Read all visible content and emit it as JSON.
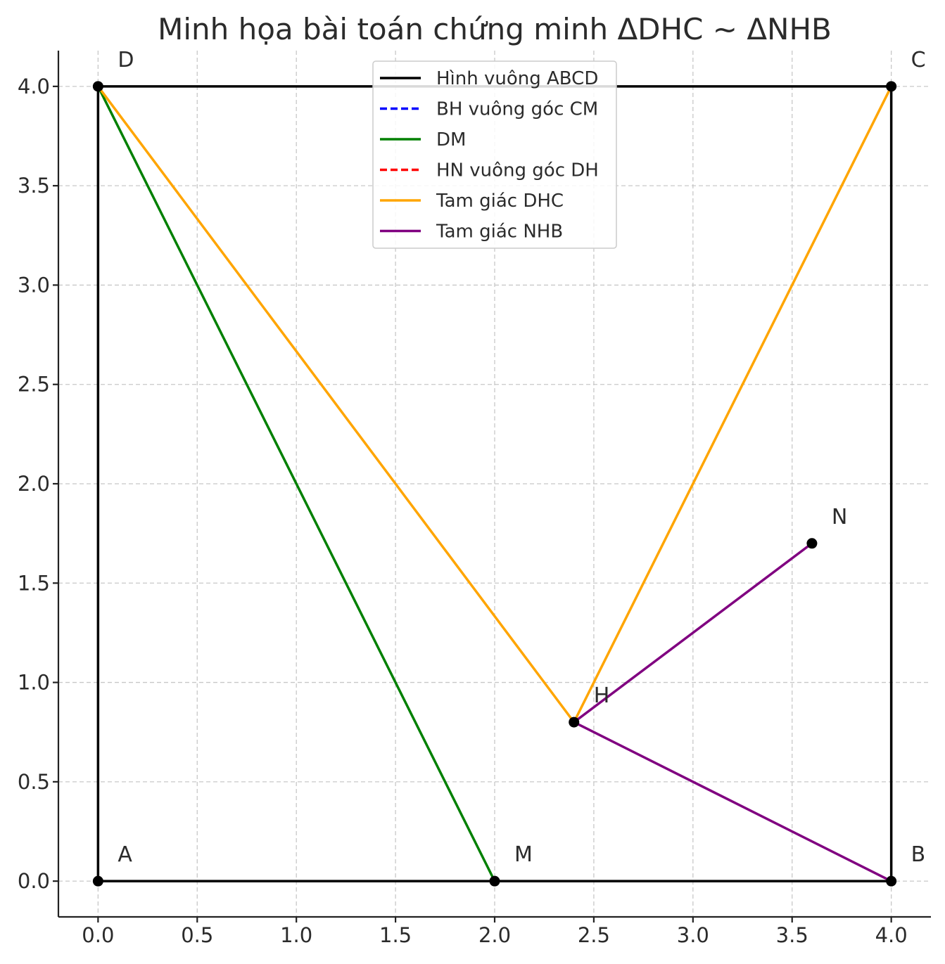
{
  "chart_data": {
    "type": "line",
    "title": "Minh họa bài toán chứng minh ΔDHC ~ ΔNHB",
    "xlabel": "",
    "ylabel": "",
    "xlim": [
      -0.2,
      4.2
    ],
    "ylim": [
      -0.18,
      4.18
    ],
    "grid": true,
    "legend_position": "top-center",
    "x_ticks": [
      "0.0",
      "0.5",
      "1.0",
      "1.5",
      "2.0",
      "2.5",
      "3.0",
      "3.5",
      "4.0"
    ],
    "y_ticks": [
      "0.0",
      "0.5",
      "1.0",
      "1.5",
      "2.0",
      "2.5",
      "3.0",
      "3.5",
      "4.0"
    ],
    "series": [
      {
        "name": "Hình vuông ABCD",
        "color": "#000000",
        "dash": "solid",
        "points": [
          [
            0,
            0
          ],
          [
            4,
            0
          ],
          [
            4,
            4
          ],
          [
            0,
            4
          ],
          [
            0,
            0
          ]
        ]
      },
      {
        "name": "BH vuông góc CM",
        "color": "#0000ff",
        "dash": "dashed",
        "points": []
      },
      {
        "name": "DM",
        "color": "#008000",
        "dash": "solid",
        "points": [
          [
            0,
            4
          ],
          [
            2,
            0
          ]
        ]
      },
      {
        "name": "HN vuông góc DH",
        "color": "#ff0000",
        "dash": "dashed",
        "points": []
      },
      {
        "name": "Tam giác DHC",
        "color": "#ffa500",
        "dash": "solid",
        "points": [
          [
            0,
            4
          ],
          [
            2.4,
            0.8
          ],
          [
            4,
            4
          ]
        ]
      },
      {
        "name": "Tam giác NHB",
        "color": "#800080",
        "dash": "solid",
        "points": [
          [
            3.6,
            1.7
          ],
          [
            2.4,
            0.8
          ],
          [
            4,
            0
          ]
        ]
      }
    ],
    "points": [
      {
        "label": "A",
        "x": 0,
        "y": 0
      },
      {
        "label": "B",
        "x": 4,
        "y": 0
      },
      {
        "label": "C",
        "x": 4,
        "y": 4
      },
      {
        "label": "D",
        "x": 0,
        "y": 4
      },
      {
        "label": "M",
        "x": 2,
        "y": 0
      },
      {
        "label": "H",
        "x": 2.4,
        "y": 0.8
      },
      {
        "label": "N",
        "x": 3.6,
        "y": 1.7
      }
    ]
  }
}
